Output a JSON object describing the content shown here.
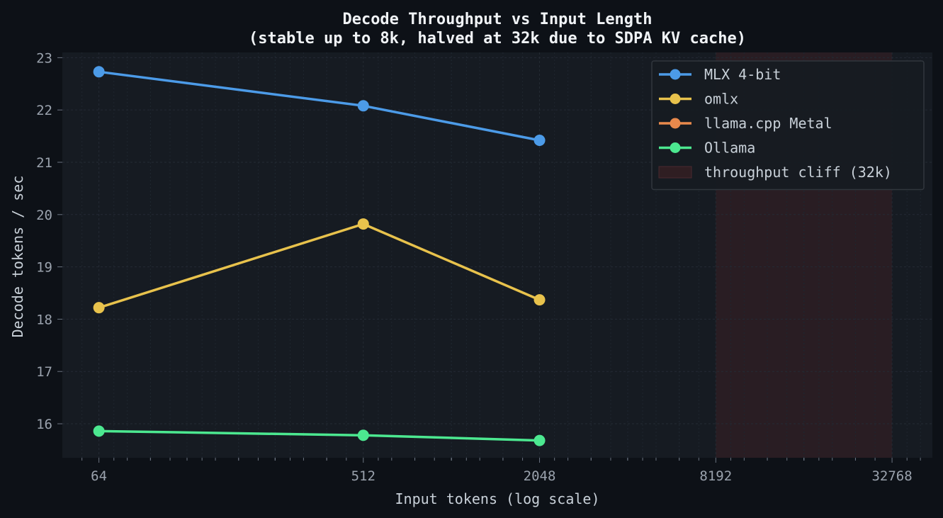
{
  "chart_data": {
    "type": "line",
    "title": "Decode Throughput vs Input Length",
    "subtitle": "(stable up to 8k, halved at 32k due to SDPA KV cache)",
    "xlabel": "Input tokens (log scale)",
    "ylabel": "Decode tokens / sec",
    "x_scale": "log2",
    "xlim": [
      48,
      45000
    ],
    "ylim": [
      15.35,
      23.1
    ],
    "x_ticks": [
      64,
      512,
      2048,
      8192,
      32768
    ],
    "x_tick_labels": [
      "64",
      "512",
      "2048",
      "8192",
      "32768"
    ],
    "y_ticks": [
      16,
      17,
      18,
      19,
      20,
      21,
      22,
      23
    ],
    "y_tick_labels": [
      "16",
      "17",
      "18",
      "19",
      "20",
      "21",
      "22",
      "23"
    ],
    "grid": true,
    "legend_position": "top-right",
    "background_color": "#0d1117",
    "plot_background_color": "#161b22",
    "series": [
      {
        "name": "MLX 4-bit",
        "color": "#4c9be8",
        "x": [
          64,
          512,
          2048
        ],
        "y": [
          22.73,
          22.08,
          21.42
        ]
      },
      {
        "name": "omlx",
        "color": "#e8c24c",
        "x": [
          64,
          512,
          2048
        ],
        "y": [
          18.22,
          19.82,
          18.37
        ]
      },
      {
        "name": "llama.cpp Metal",
        "color": "#e8894c",
        "x": [],
        "y": []
      },
      {
        "name": "Ollama",
        "color": "#4ce890",
        "x": [
          64,
          512,
          2048
        ],
        "y": [
          15.86,
          15.78,
          15.68
        ]
      }
    ],
    "shaded_regions": [
      {
        "name": "throughput cliff (32k)",
        "x_start": 8192,
        "x_end": 32768,
        "color": "#3a1f24"
      }
    ]
  }
}
